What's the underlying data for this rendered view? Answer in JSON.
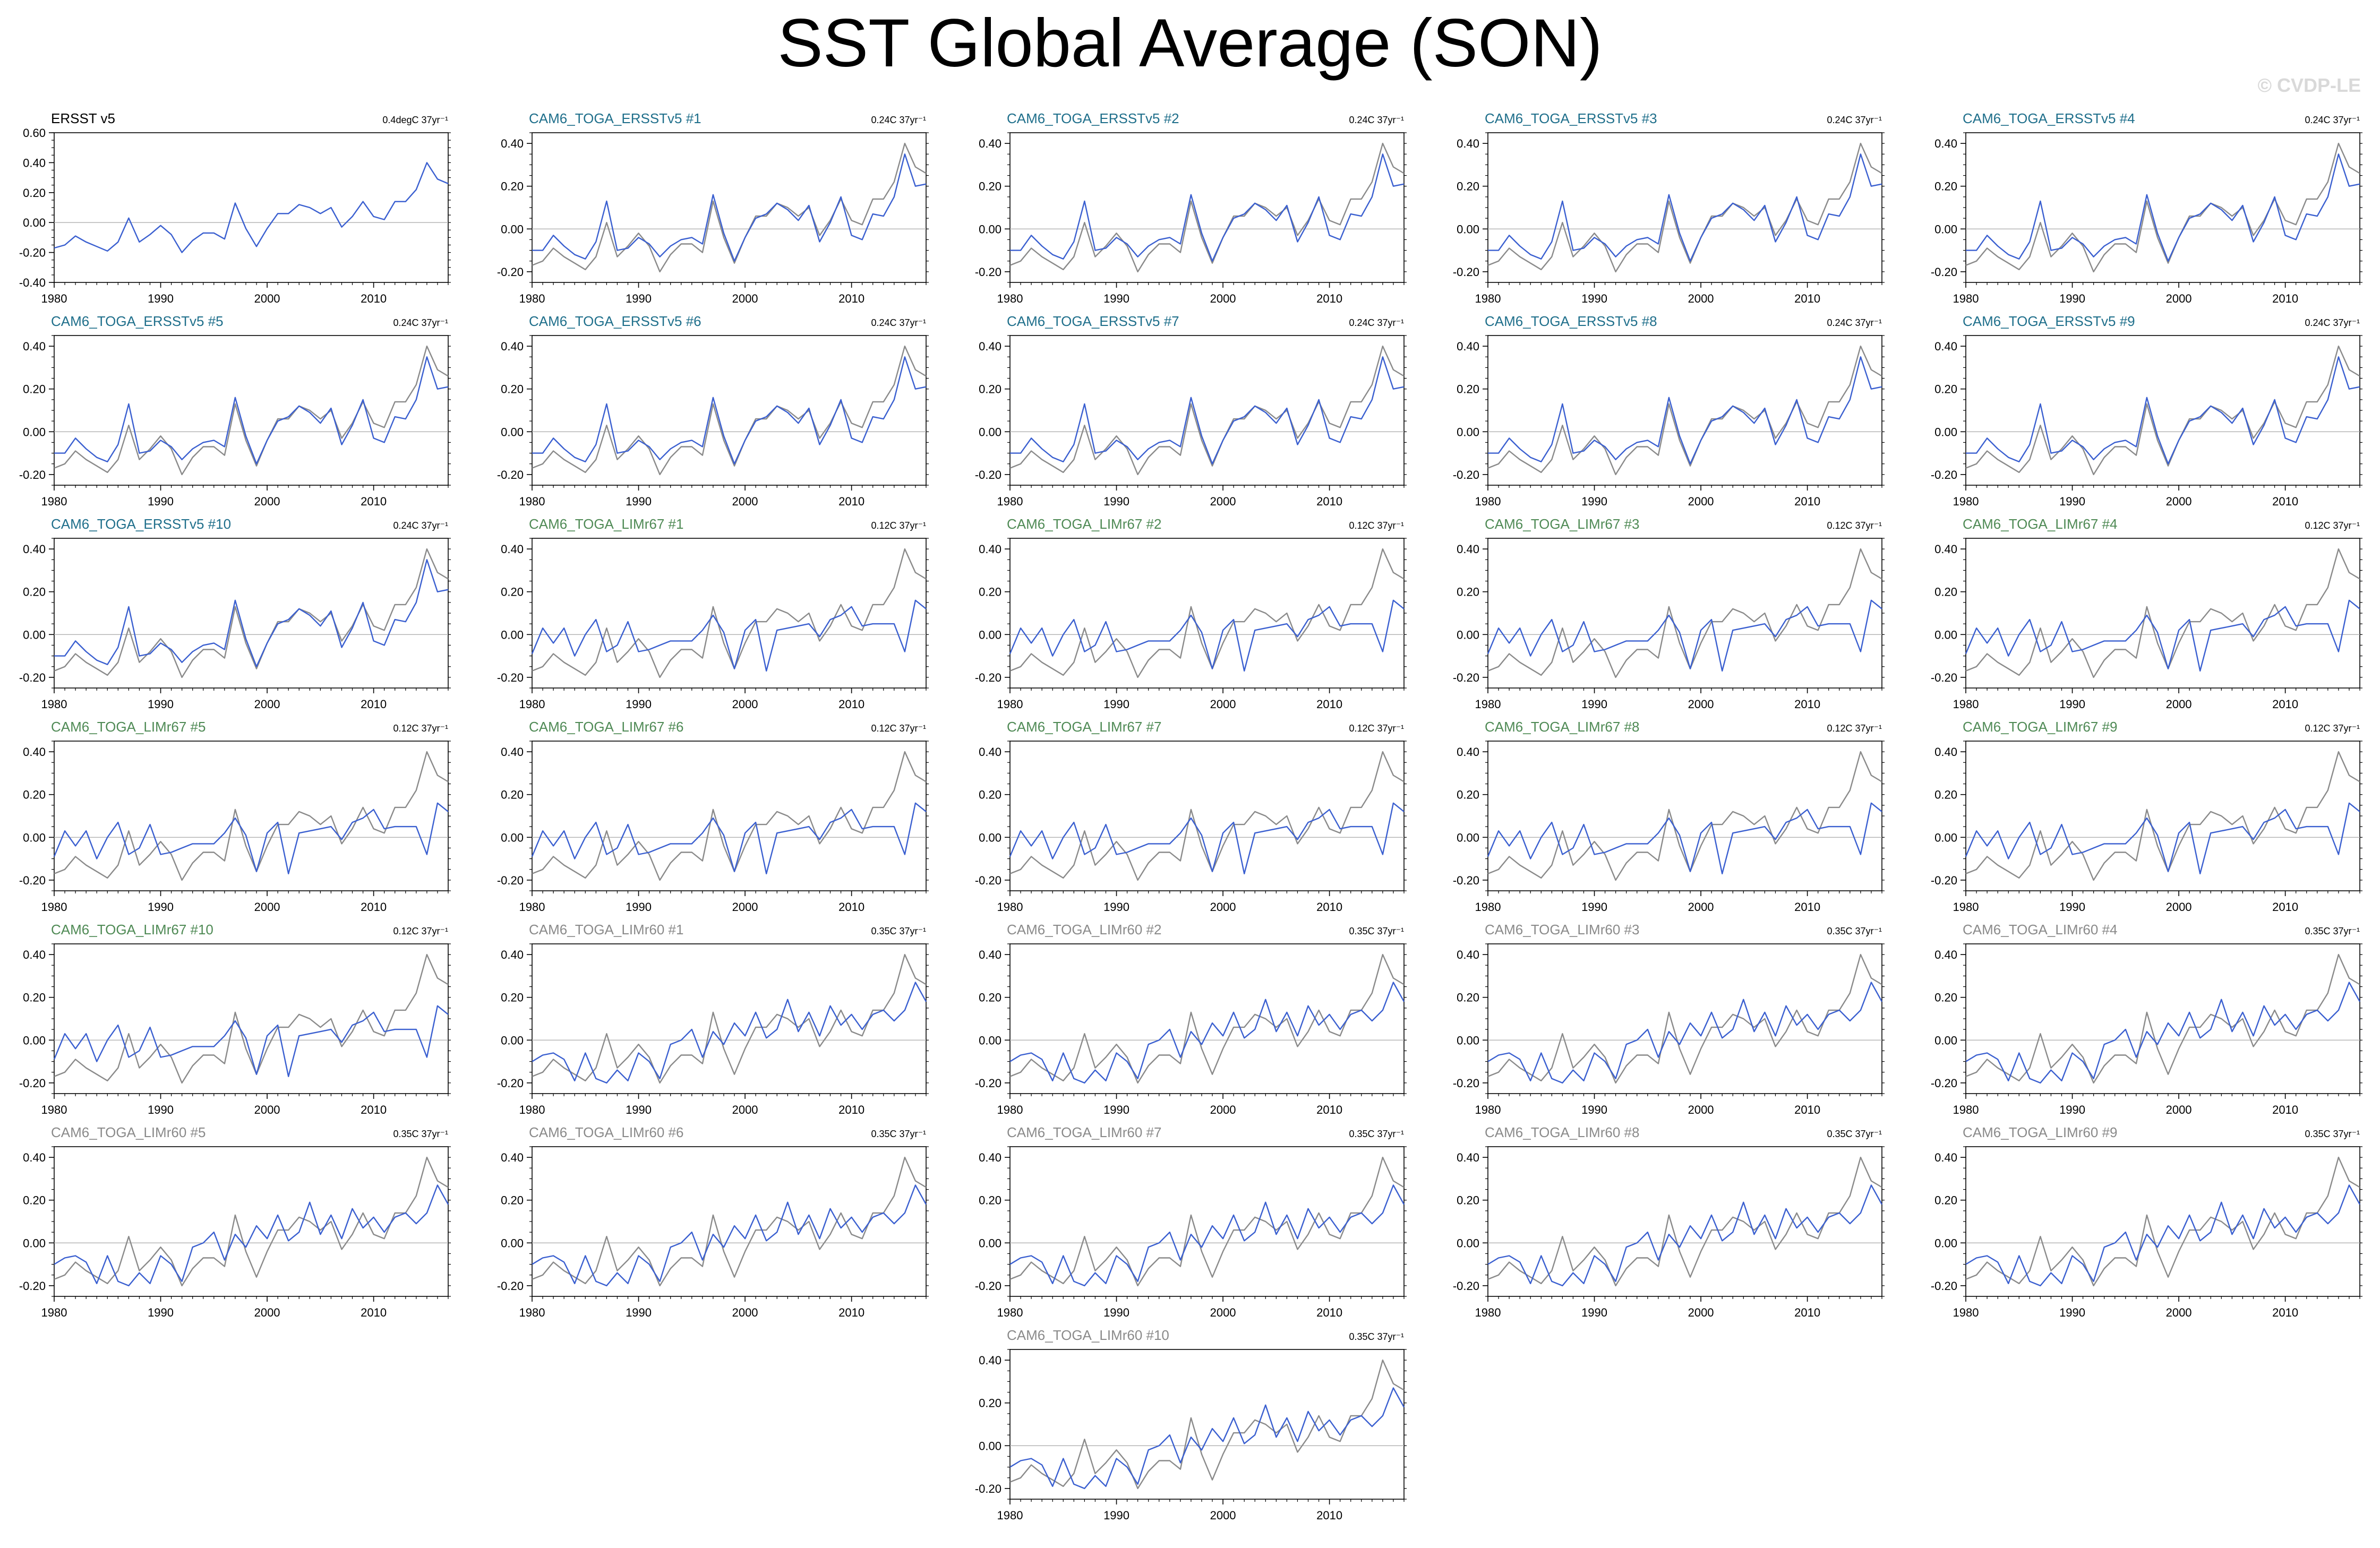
{
  "page": {
    "title": "SST Global Average (SON)",
    "watermark": "© CVDP-LE"
  },
  "colors": {
    "obs_line": "#8a8a8a",
    "model_line": "#3a5fd0",
    "ersst_title": "#000000",
    "ersst_members_title": "#1f6f8b",
    "limr67_title": "#4f8a55",
    "limr60_title": "#8a8a8a",
    "zero_line": "#b0b0b0",
    "frame": "#000000"
  },
  "chart_data": {
    "type": "line",
    "years": [
      1980,
      1981,
      1982,
      1983,
      1984,
      1985,
      1986,
      1987,
      1988,
      1989,
      1990,
      1991,
      1992,
      1993,
      1994,
      1995,
      1996,
      1997,
      1998,
      1999,
      2000,
      2001,
      2002,
      2003,
      2004,
      2005,
      2006,
      2007,
      2008,
      2009,
      2010,
      2011,
      2012,
      2013,
      2014,
      2015,
      2016,
      2017
    ],
    "x_ticks": [
      1980,
      1990,
      2000,
      2010
    ],
    "obs_series": {
      "name": "ERSST v5",
      "values": [
        -0.17,
        -0.15,
        -0.09,
        -0.13,
        -0.16,
        -0.19,
        -0.13,
        0.03,
        -0.13,
        -0.08,
        -0.02,
        -0.08,
        -0.2,
        -0.12,
        -0.07,
        -0.07,
        -0.11,
        0.13,
        -0.04,
        -0.16,
        -0.04,
        0.06,
        0.06,
        0.12,
        0.1,
        0.06,
        0.1,
        -0.03,
        0.04,
        0.14,
        0.04,
        0.02,
        0.14,
        0.14,
        0.22,
        0.4,
        0.29,
        0.26
      ]
    },
    "group_trend_labels": {
      "ersst": "0.24C 37yr⁻¹",
      "limr67": "0.12C 37yr⁻¹",
      "limr60": "0.35C 37yr⁻¹"
    },
    "group_series": {
      "ersst": [
        -0.1,
        -0.1,
        -0.03,
        -0.08,
        -0.12,
        -0.14,
        -0.06,
        0.13,
        -0.1,
        -0.09,
        -0.04,
        -0.07,
        -0.13,
        -0.08,
        -0.05,
        -0.04,
        -0.07,
        0.16,
        -0.02,
        -0.15,
        -0.04,
        0.05,
        0.07,
        0.12,
        0.09,
        0.04,
        0.11,
        -0.06,
        0.03,
        0.15,
        -0.03,
        -0.05,
        0.07,
        0.06,
        0.15,
        0.35,
        0.2,
        0.21
      ],
      "limr67": [
        -0.09,
        0.03,
        -0.04,
        0.03,
        -0.1,
        0.0,
        0.07,
        -0.08,
        -0.05,
        0.06,
        -0.08,
        -0.07,
        -0.05,
        -0.03,
        -0.03,
        -0.03,
        0.02,
        0.09,
        0.01,
        -0.16,
        0.02,
        0.07,
        -0.17,
        0.02,
        0.03,
        0.04,
        0.05,
        -0.01,
        0.07,
        0.09,
        0.13,
        0.04,
        0.05,
        0.05,
        0.05,
        -0.08,
        0.16,
        0.12
      ],
      "limr60": [
        -0.1,
        -0.07,
        -0.06,
        -0.09,
        -0.19,
        -0.06,
        -0.18,
        -0.2,
        -0.14,
        -0.19,
        -0.06,
        -0.1,
        -0.18,
        -0.02,
        0.0,
        0.05,
        -0.08,
        0.04,
        -0.02,
        0.08,
        0.02,
        0.13,
        0.01,
        0.05,
        0.19,
        0.04,
        0.13,
        0.02,
        0.16,
        0.07,
        0.12,
        0.05,
        0.12,
        0.14,
        0.09,
        0.14,
        0.27,
        0.18
      ]
    },
    "obs_panel": {
      "title": "ERSST v5",
      "trend_label": "0.4degC 37yr⁻¹",
      "ylim": [
        -0.4,
        0.6
      ],
      "y_ticks": [
        "0.60",
        "0.40",
        "0.20",
        "0.00",
        "-0.20",
        "-0.40"
      ]
    },
    "member_ylim": [
      -0.25,
      0.45
    ],
    "member_y_ticks": [
      "0.40",
      "0.20",
      "0.00",
      "-0.20"
    ],
    "members": [
      {
        "title": "CAM6_TOGA_ERSSTv5 #1",
        "group": "ersst"
      },
      {
        "title": "CAM6_TOGA_ERSSTv5 #2",
        "group": "ersst"
      },
      {
        "title": "CAM6_TOGA_ERSSTv5 #3",
        "group": "ersst"
      },
      {
        "title": "CAM6_TOGA_ERSSTv5 #4",
        "group": "ersst"
      },
      {
        "title": "CAM6_TOGA_ERSSTv5 #5",
        "group": "ersst"
      },
      {
        "title": "CAM6_TOGA_ERSSTv5 #6",
        "group": "ersst"
      },
      {
        "title": "CAM6_TOGA_ERSSTv5 #7",
        "group": "ersst"
      },
      {
        "title": "CAM6_TOGA_ERSSTv5 #8",
        "group": "ersst"
      },
      {
        "title": "CAM6_TOGA_ERSSTv5 #9",
        "group": "ersst"
      },
      {
        "title": "CAM6_TOGA_ERSSTv5 #10",
        "group": "ersst"
      },
      {
        "title": "CAM6_TOGA_LIMr67 #1",
        "group": "limr67"
      },
      {
        "title": "CAM6_TOGA_LIMr67 #2",
        "group": "limr67"
      },
      {
        "title": "CAM6_TOGA_LIMr67 #3",
        "group": "limr67"
      },
      {
        "title": "CAM6_TOGA_LIMr67 #4",
        "group": "limr67"
      },
      {
        "title": "CAM6_TOGA_LIMr67 #5",
        "group": "limr67"
      },
      {
        "title": "CAM6_TOGA_LIMr67 #6",
        "group": "limr67"
      },
      {
        "title": "CAM6_TOGA_LIMr67 #7",
        "group": "limr67"
      },
      {
        "title": "CAM6_TOGA_LIMr67 #8",
        "group": "limr67"
      },
      {
        "title": "CAM6_TOGA_LIMr67 #9",
        "group": "limr67"
      },
      {
        "title": "CAM6_TOGA_LIMr67 #10",
        "group": "limr67"
      },
      {
        "title": "CAM6_TOGA_LIMr60 #1",
        "group": "limr60"
      },
      {
        "title": "CAM6_TOGA_LIMr60 #2",
        "group": "limr60"
      },
      {
        "title": "CAM6_TOGA_LIMr60 #3",
        "group": "limr60"
      },
      {
        "title": "CAM6_TOGA_LIMr60 #4",
        "group": "limr60"
      },
      {
        "title": "CAM6_TOGA_LIMr60 #5",
        "group": "limr60"
      },
      {
        "title": "CAM6_TOGA_LIMr60 #6",
        "group": "limr60"
      },
      {
        "title": "CAM6_TOGA_LIMr60 #7",
        "group": "limr60"
      },
      {
        "title": "CAM6_TOGA_LIMr60 #8",
        "group": "limr60"
      },
      {
        "title": "CAM6_TOGA_LIMr60 #9",
        "group": "limr60"
      },
      {
        "title": "CAM6_TOGA_LIMr60 #10",
        "group": "limr60"
      }
    ]
  }
}
